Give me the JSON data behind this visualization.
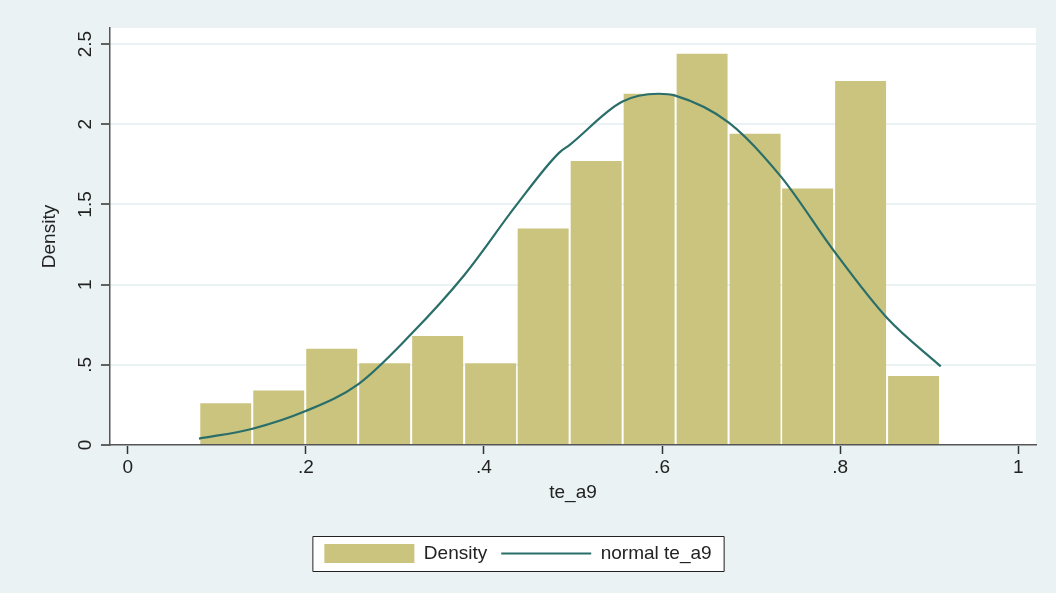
{
  "chart_data": {
    "type": "histogram",
    "xlabel": "te_a9",
    "ylabel": "Density",
    "bins": [
      0.08,
      0.14,
      0.199,
      0.259,
      0.318,
      0.378,
      0.437,
      0.496,
      0.556,
      0.615,
      0.675,
      0.734,
      0.793,
      0.853,
      0.912
    ],
    "series": [
      {
        "name": "Density",
        "type": "histogram",
        "color": "#cbc47f",
        "values": [
          0.26,
          0.34,
          0.6,
          0.51,
          0.68,
          0.51,
          1.35,
          1.77,
          2.19,
          2.44,
          1.94,
          1.6,
          2.27,
          0.43
        ]
      },
      {
        "name": "normal te_a9",
        "type": "line",
        "color": "#2a6e6a",
        "x": [
          0.08,
          0.139,
          0.199,
          0.259,
          0.318,
          0.378,
          0.437,
          0.484,
          0.496,
          0.555,
          0.596,
          0.614,
          0.675,
          0.734,
          0.793,
          0.853,
          0.913
        ],
        "values": [
          0.04,
          0.1,
          0.21,
          0.38,
          0.69,
          1.06,
          1.5,
          1.82,
          1.87,
          2.14,
          2.19,
          2.18,
          2.01,
          1.67,
          1.21,
          0.79,
          0.49
        ]
      }
    ],
    "xlim": [
      -0.02,
      1.02
    ],
    "ylim": [
      0,
      2.6
    ],
    "xticks": [
      0,
      {
        "value": 0.2,
        "label": ".2"
      },
      {
        "value": 0.4,
        "label": ".4"
      },
      {
        "value": 0.6,
        "label": ".6"
      },
      {
        "value": 0.8,
        "label": ".8"
      },
      1
    ],
    "yticks": [
      0,
      {
        "value": 0.5,
        "label": ".5"
      },
      1,
      1.5,
      2,
      2.5
    ],
    "grid": "y",
    "legend": "bottom"
  }
}
